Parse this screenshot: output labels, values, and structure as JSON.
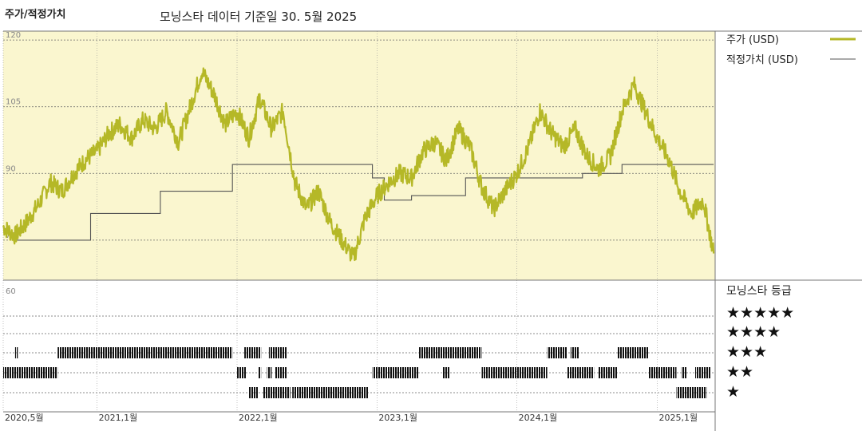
{
  "header": {
    "left_title": "주가/적정가치",
    "center_title": "모닝스타 데이터 기준일 30. 5월 2025"
  },
  "legend": {
    "price_label": "주가 (USD)",
    "fair_label": "적정가치 (USD)",
    "rating_title": "모닝스타 등급",
    "stars": [
      "★★★★★",
      "★★★★",
      "★★★",
      "★★",
      "★"
    ]
  },
  "colors": {
    "price_line": "#b5b827",
    "fair_line": "#555555",
    "upper_bg": "#faf6cf",
    "grid": "#9a9a9a",
    "rating_bar": "#111111"
  },
  "chart_data": [
    {
      "type": "line",
      "y_axis_ticks": [
        120,
        105,
        90,
        75
      ],
      "ylim": [
        66,
        122
      ],
      "x_axis_ticks": [
        "2020,5월",
        "2021,1월",
        "2022,1월",
        "2023,1월",
        "2024,1월",
        "2025,1월"
      ],
      "x_tick_dates": [
        "2020-05",
        "2021-01",
        "2022-01",
        "2023-01",
        "2024-01",
        "2025-01"
      ],
      "xlim": [
        "2020-05",
        "2025-05"
      ],
      "series": [
        {
          "name": "주가 (USD)",
          "points": [
            [
              "2020-05-01",
              78
            ],
            [
              "2020-06-01",
              76
            ],
            [
              "2020-07-01",
              79
            ],
            [
              "2020-08-01",
              83
            ],
            [
              "2020-09-01",
              88
            ],
            [
              "2020-10-01",
              86
            ],
            [
              "2020-11-01",
              90
            ],
            [
              "2020-12-01",
              93
            ],
            [
              "2021-01-01",
              95
            ],
            [
              "2021-02-01",
              99
            ],
            [
              "2021-03-01",
              101
            ],
            [
              "2021-04-01",
              98
            ],
            [
              "2021-05-01",
              102
            ],
            [
              "2021-06-01",
              100
            ],
            [
              "2021-07-01",
              104
            ],
            [
              "2021-08-01",
              97
            ],
            [
              "2021-09-01",
              105
            ],
            [
              "2021-10-01",
              113
            ],
            [
              "2021-11-01",
              108
            ],
            [
              "2021-12-01",
              101
            ],
            [
              "2022-01-01",
              104
            ],
            [
              "2022-02-01",
              98
            ],
            [
              "2022-03-01",
              107
            ],
            [
              "2022-04-01",
              100
            ],
            [
              "2022-05-01",
              104
            ],
            [
              "2022-06-01",
              88
            ],
            [
              "2022-07-01",
              82
            ],
            [
              "2022-08-01",
              86
            ],
            [
              "2022-09-01",
              79
            ],
            [
              "2022-10-01",
              75
            ],
            [
              "2022-11-01",
              71
            ],
            [
              "2022-12-01",
              80
            ],
            [
              "2023-01-01",
              85
            ],
            [
              "2023-02-01",
              88
            ],
            [
              "2023-03-01",
              90
            ],
            [
              "2023-04-01",
              89
            ],
            [
              "2023-05-01",
              95
            ],
            [
              "2023-06-01",
              97
            ],
            [
              "2023-07-01",
              93
            ],
            [
              "2023-08-01",
              100
            ],
            [
              "2023-09-01",
              96
            ],
            [
              "2023-10-01",
              87
            ],
            [
              "2023-11-01",
              82
            ],
            [
              "2023-12-01",
              86
            ],
            [
              "2024-01-01",
              90
            ],
            [
              "2024-02-01",
              96
            ],
            [
              "2024-03-01",
              104
            ],
            [
              "2024-04-01",
              99
            ],
            [
              "2024-05-01",
              96
            ],
            [
              "2024-06-01",
              100
            ],
            [
              "2024-07-01",
              94
            ],
            [
              "2024-08-01",
              91
            ],
            [
              "2024-09-01",
              94
            ],
            [
              "2024-10-01",
              104
            ],
            [
              "2024-11-01",
              110
            ],
            [
              "2024-12-01",
              104
            ],
            [
              "2025-01-01",
              98
            ],
            [
              "2025-02-01",
              93
            ],
            [
              "2025-03-01",
              86
            ],
            [
              "2025-04-01",
              81
            ],
            [
              "2025-05-01",
              84
            ],
            [
              "2025-05-28",
              72
            ]
          ]
        },
        {
          "name": "적정가치 (USD)",
          "points": [
            [
              "2020-05-01",
              78
            ],
            [
              "2020-06-01",
              75
            ],
            [
              "2020-12-15",
              75
            ],
            [
              "2020-12-15",
              81
            ],
            [
              "2021-06-15",
              81
            ],
            [
              "2021-06-15",
              86
            ],
            [
              "2021-12-20",
              86
            ],
            [
              "2021-12-20",
              92
            ],
            [
              "2022-12-20",
              92
            ],
            [
              "2022-12-20",
              89
            ],
            [
              "2023-01-20",
              89
            ],
            [
              "2023-01-20",
              84
            ],
            [
              "2023-04-01",
              84
            ],
            [
              "2023-04-01",
              85
            ],
            [
              "2023-08-20",
              85
            ],
            [
              "2023-08-20",
              89
            ],
            [
              "2024-01-20",
              89
            ],
            [
              "2024-01-20",
              89
            ],
            [
              "2024-06-20",
              89
            ],
            [
              "2024-06-20",
              90
            ],
            [
              "2024-10-01",
              90
            ],
            [
              "2024-10-01",
              92
            ],
            [
              "2025-05-28",
              92
            ]
          ]
        }
      ]
    },
    {
      "type": "timeline",
      "levels": [
        "★★★★★",
        "★★★★",
        "★★★",
        "★★",
        "★"
      ],
      "segments": [
        {
          "level": 4,
          "from": "2022-02-01",
          "to": "2022-02-25"
        },
        {
          "level": 4,
          "from": "2022-03-10",
          "to": "2022-05-20"
        },
        {
          "level": 4,
          "from": "2022-05-25",
          "to": "2022-12-10"
        },
        {
          "level": 4,
          "from": "2025-02-20",
          "to": "2025-05-10"
        },
        {
          "level": 3,
          "from": "2020-05-01",
          "to": "2020-09-20"
        },
        {
          "level": 3,
          "from": "2022-01-01",
          "to": "2022-01-25"
        },
        {
          "level": 3,
          "from": "2022-02-25",
          "to": "2022-03-05"
        },
        {
          "level": 3,
          "from": "2022-03-20",
          "to": "2022-04-01"
        },
        {
          "level": 3,
          "from": "2022-04-10",
          "to": "2022-05-10"
        },
        {
          "level": 3,
          "from": "2022-12-20",
          "to": "2023-04-20"
        },
        {
          "level": 3,
          "from": "2023-06-20",
          "to": "2023-07-10"
        },
        {
          "level": 3,
          "from": "2023-10-01",
          "to": "2024-03-20"
        },
        {
          "level": 3,
          "from": "2024-05-10",
          "to": "2024-07-20"
        },
        {
          "level": 3,
          "from": "2024-08-01",
          "to": "2024-09-20"
        },
        {
          "level": 3,
          "from": "2024-12-10",
          "to": "2025-02-20"
        },
        {
          "level": 3,
          "from": "2025-03-05",
          "to": "2025-03-20"
        },
        {
          "level": 3,
          "from": "2025-04-10",
          "to": "2025-05-20"
        },
        {
          "level": 2,
          "from": "2020-06-01",
          "to": "2020-06-08"
        },
        {
          "level": 2,
          "from": "2020-09-20",
          "to": "2021-12-20"
        },
        {
          "level": 2,
          "from": "2022-01-20",
          "to": "2022-03-05"
        },
        {
          "level": 2,
          "from": "2022-03-25",
          "to": "2022-05-10"
        },
        {
          "level": 2,
          "from": "2023-04-20",
          "to": "2023-10-01"
        },
        {
          "level": 2,
          "from": "2024-03-20",
          "to": "2024-05-10"
        },
        {
          "level": 2,
          "from": "2024-05-20",
          "to": "2024-06-10"
        },
        {
          "level": 2,
          "from": "2024-09-20",
          "to": "2024-12-10"
        }
      ]
    }
  ]
}
